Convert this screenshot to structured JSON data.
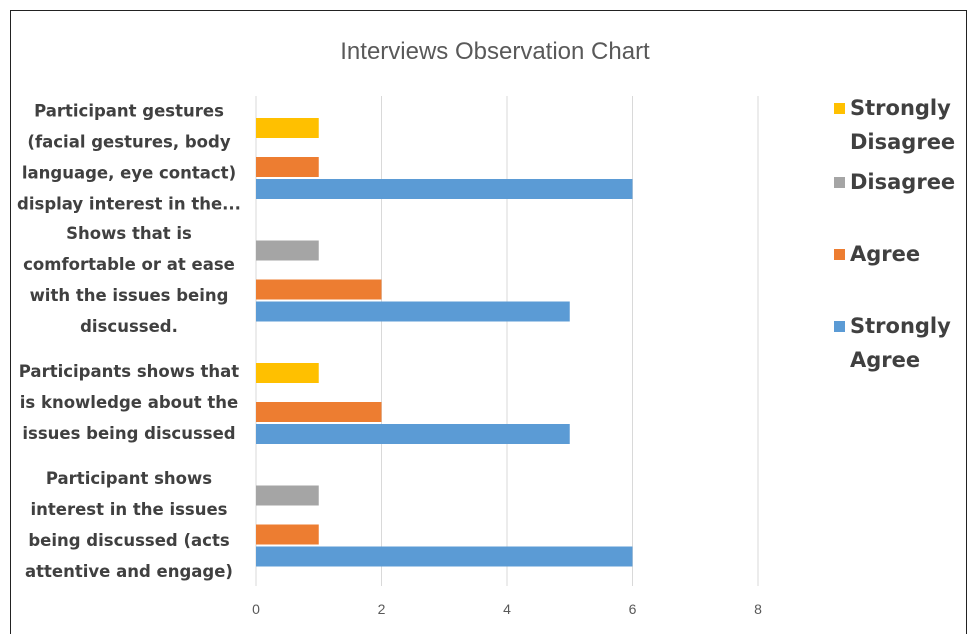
{
  "chart_data": {
    "type": "bar",
    "orientation": "horizontal",
    "title": "Interviews Observation Chart",
    "categories": [
      "Participant gestures (facial gestures, body language, eye contact) display interest in the...",
      "Shows that is comfortable or at ease with the issues being discussed.",
      "Participants shows that is knowledge about the issues being discussed",
      "Participant shows interest in the issues being discussed (acts attentive and engage)"
    ],
    "category_lines": [
      [
        "Participant gestures",
        "(facial gestures, body",
        "language, eye contact)",
        "display interest in the..."
      ],
      [
        "Shows that is",
        "comfortable or at ease",
        "with the issues being",
        "discussed."
      ],
      [
        "Participants shows that",
        "is knowledge about the",
        "issues being discussed"
      ],
      [
        "Participant shows",
        "interest in the issues",
        "being discussed (acts",
        "attentive and engage)"
      ]
    ],
    "series": [
      {
        "name": "Strongly Disagree",
        "color": "#FFC000",
        "values": [
          1,
          0,
          1,
          0
        ]
      },
      {
        "name": "Disagree",
        "color": "#A5A5A5",
        "values": [
          0,
          1,
          0,
          1
        ]
      },
      {
        "name": "Agree",
        "color": "#ED7D31",
        "values": [
          1,
          2,
          2,
          1
        ]
      },
      {
        "name": "Strongly Agree",
        "color": "#5B9BD5",
        "values": [
          6,
          5,
          5,
          6
        ]
      }
    ],
    "xlim": [
      0,
      8
    ],
    "xticks": [
      0,
      2,
      4,
      6,
      8
    ],
    "grid": true,
    "legend_position": "right"
  }
}
